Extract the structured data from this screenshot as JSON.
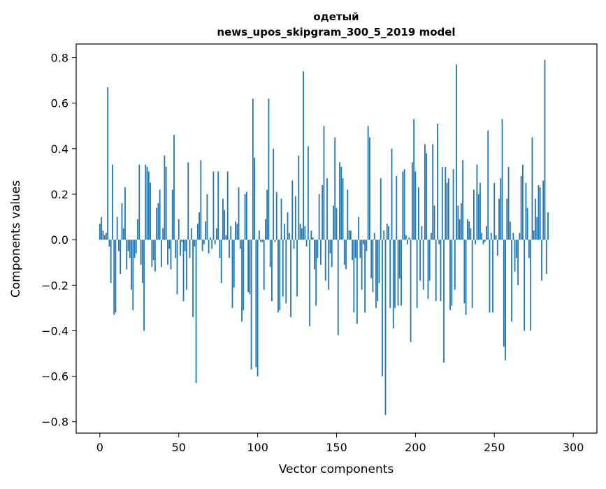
{
  "chart_data": {
    "type": "bar",
    "title": "одетый",
    "subtitle": "news_upos_skipgram_300_5_2019 model",
    "xlabel": "Vector components",
    "ylabel": "Components values",
    "xlim": [
      -15,
      315
    ],
    "ylim": [
      -0.85,
      0.86
    ],
    "xticks": [
      0,
      50,
      100,
      150,
      200,
      250,
      300
    ],
    "yticks": [
      -0.8,
      -0.6,
      -0.4,
      -0.2,
      0.0,
      0.2,
      0.4,
      0.6,
      0.8
    ],
    "xtick_labels": [
      "0",
      "50",
      "100",
      "150",
      "200",
      "250",
      "300"
    ],
    "ytick_labels": [
      "−0.8",
      "−0.6",
      "−0.4",
      "−0.2",
      "0.0",
      "0.2",
      "0.4",
      "0.6",
      "0.8"
    ],
    "grid": false,
    "bar_color": "#1f77b4",
    "values": [
      0.07,
      0.1,
      0.04,
      0.02,
      0.03,
      0.67,
      -0.03,
      -0.19,
      0.33,
      -0.33,
      -0.32,
      0.1,
      -0.05,
      -0.15,
      0.16,
      0.05,
      0.23,
      -0.13,
      -0.05,
      -0.08,
      -0.22,
      -0.31,
      -0.08,
      -0.06,
      0.09,
      0.33,
      -0.11,
      -0.19,
      -0.4,
      0.33,
      0.32,
      0.3,
      0.25,
      -0.12,
      -0.09,
      -0.14,
      0.14,
      0.16,
      0.22,
      -0.12,
      0.05,
      0.37,
      0.32,
      -0.11,
      -0.04,
      -0.13,
      0.22,
      0.46,
      -0.08,
      -0.24,
      0.09,
      -0.07,
      -0.01,
      -0.27,
      -0.05,
      -0.22,
      0.34,
      -0.08,
      0.05,
      -0.34,
      -0.03,
      -0.63,
      0.07,
      0.12,
      0.35,
      -0.05,
      -0.02,
      0.08,
      0.2,
      -0.06,
      0.01,
      -0.04,
      0.3,
      -0.02,
      0.05,
      0.3,
      -0.08,
      -0.19,
      0.18,
      0.13,
      0.02,
      0.3,
      -0.08,
      0.06,
      -0.3,
      -0.21,
      0.08,
      0.07,
      0.23,
      -0.04,
      -0.36,
      -0.31,
      0.2,
      0.21,
      -0.23,
      -0.24,
      -0.57,
      0.62,
      0.36,
      -0.56,
      -0.6,
      0.04,
      -0.01,
      -0.01,
      -0.22,
      0.09,
      0.22,
      0.62,
      -0.12,
      -0.27,
      0.4,
      -0.01,
      0.21,
      -0.32,
      -0.31,
      0.18,
      -0.25,
      0.07,
      -0.28,
      0.12,
      0.03,
      -0.34,
      0.26,
      -0.04,
      0.19,
      -0.25,
      0.37,
      0.07,
      0.05,
      0.74,
      0.06,
      -0.03,
      0.41,
      -0.38,
      0.04,
      0.01,
      -0.13,
      -0.29,
      -0.08,
      0.2,
      -0.11,
      0.24,
      0.5,
      -0.18,
      0.27,
      -0.22,
      -0.06,
      -0.12,
      0.15,
      0.45,
      0.14,
      -0.42,
      0.34,
      0.32,
      0.27,
      -0.11,
      -0.13,
      0.22,
      0.04,
      0.04,
      -0.09,
      -0.32,
      -0.08,
      -0.37,
      0.1,
      -0.08,
      -0.22,
      -0.02,
      -0.32,
      -0.05,
      0.5,
      0.45,
      -0.17,
      -0.23,
      0.03,
      -0.3,
      -0.27,
      -0.19,
      0.27,
      -0.6,
      0.04,
      -0.77,
      0.07,
      0.06,
      -0.3,
      0.4,
      -0.39,
      -0.3,
      0.28,
      -0.29,
      -0.17,
      -0.29,
      0.3,
      0.31,
      0.02,
      -0.02,
      0.01,
      -0.45,
      0.34,
      0.53,
      0.3,
      -0.3,
      0.23,
      -0.18,
      0.06,
      -0.22,
      0.42,
      0.38,
      -0.26,
      -0.18,
      0.03,
      0.42,
      0.15,
      -0.27,
      0.51,
      -0.02,
      -0.27,
      0.32,
      -0.54,
      0.32,
      0.25,
      0.27,
      -0.31,
      -0.29,
      0.31,
      -0.22,
      0.77,
      0.15,
      0.09,
      0.16,
      0.35,
      -0.28,
      -0.33,
      0.09,
      0.08,
      0.05,
      -0.3,
      0.22,
      -0.02,
      0.33,
      0.2,
      0.25,
      0.03,
      -0.02,
      -0.01,
      0.06,
      0.48,
      -0.32,
      0.03,
      -0.32,
      0.25,
      0.02,
      -0.07,
      0.18,
      0.27,
      0.53,
      -0.47,
      -0.53,
      0.18,
      0.32,
      0.08,
      -0.36,
      0.03,
      -0.14,
      -0.08,
      -0.2,
      0.03,
      0.28,
      0.33,
      -0.4,
      0.25,
      0.14,
      -0.08,
      -0.4,
      0.45,
      0.04,
      0.18,
      0.1,
      0.24,
      0.23,
      -0.18,
      0.26,
      0.79,
      -0.15,
      0.12
    ]
  }
}
